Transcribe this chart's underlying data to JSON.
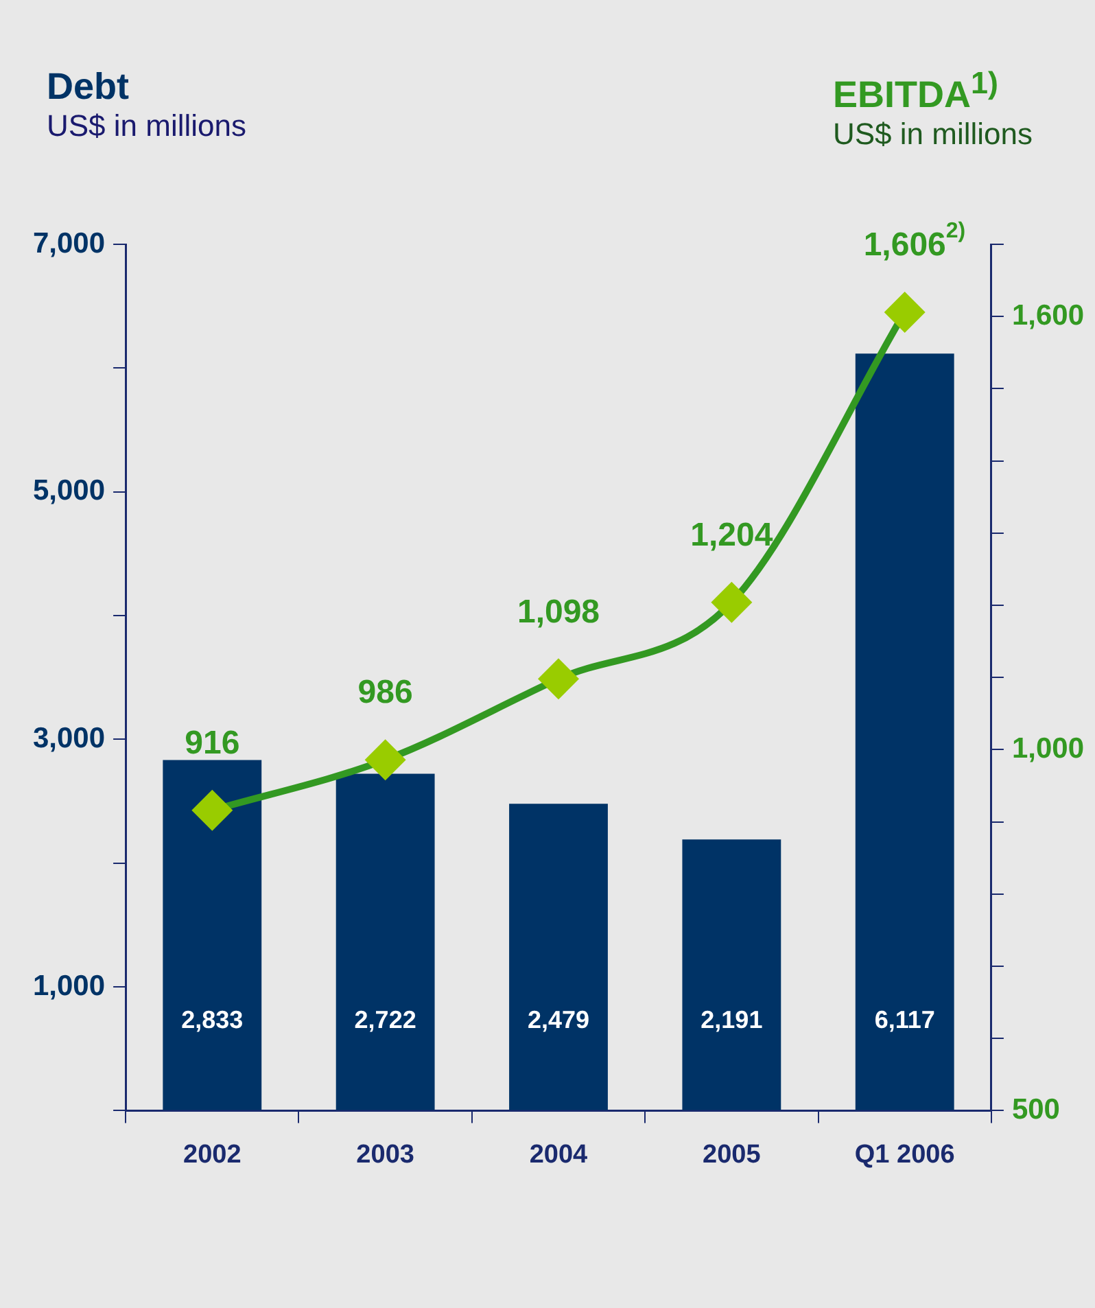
{
  "chart_data": {
    "type": "bar",
    "categories": [
      "2002",
      "2003",
      "2004",
      "2005",
      "Q1 2006"
    ],
    "ylabel": "US$ in millions",
    "y2label": "US$ in millions",
    "series": [
      {
        "name": "Debt",
        "color": "#003366",
        "values": [
          2833,
          2722,
          2479,
          2191,
          6117
        ],
        "value_labels": [
          "2,833",
          "2,722",
          "2,479",
          "2,191",
          "6,117"
        ]
      },
      {
        "name": "EBITDA$^{1)}$",
        "type": "line",
        "axis": "y2",
        "color": "#339922",
        "colors": [
          "#99cc00",
          "#99cc00",
          "#99cc00",
          "#99cc00",
          "#99cc00"
        ],
        "marker": "diamond",
        "values": [
          916,
          986,
          1098,
          1204,
          1606
        ],
        "value_labels": [
          "916",
          "986",
          "1,098",
          "1,204",
          "1,606$^{2)}$"
        ]
      }
    ],
    "ylim": [
      0,
      7000
    ],
    "yticks": [
      {
        "value": 0,
        "label": null
      },
      {
        "value": 1000,
        "label": "1,000"
      },
      {
        "value": 2000,
        "label": null
      },
      {
        "value": 3000,
        "label": "3,000"
      },
      {
        "value": 4000,
        "label": null
      },
      {
        "value": 5000,
        "label": "5,000"
      },
      {
        "value": 6000,
        "label": null
      },
      {
        "value": 7000,
        "label": "7,000"
      }
    ],
    "y2lim": [
      500,
      1700
    ],
    "y2ticks": [
      500,
      {
        "value": 600,
        "label": null
      },
      {
        "value": 700,
        "label": null
      },
      {
        "value": 800,
        "label": null
      },
      {
        "value": 900,
        "label": null
      },
      {
        "value": 1000,
        "label": "1,000"
      },
      {
        "value": 1100,
        "label": null
      },
      {
        "value": 1200,
        "label": null
      },
      {
        "value": 1300,
        "label": null
      },
      {
        "value": 1400,
        "label": null
      },
      {
        "value": 1500,
        "label": null
      },
      {
        "value": 1600,
        "label": "1,600"
      },
      {
        "value": 1700,
        "label": null
      }
    ],
    "grid": false,
    "legend": false
  }
}
